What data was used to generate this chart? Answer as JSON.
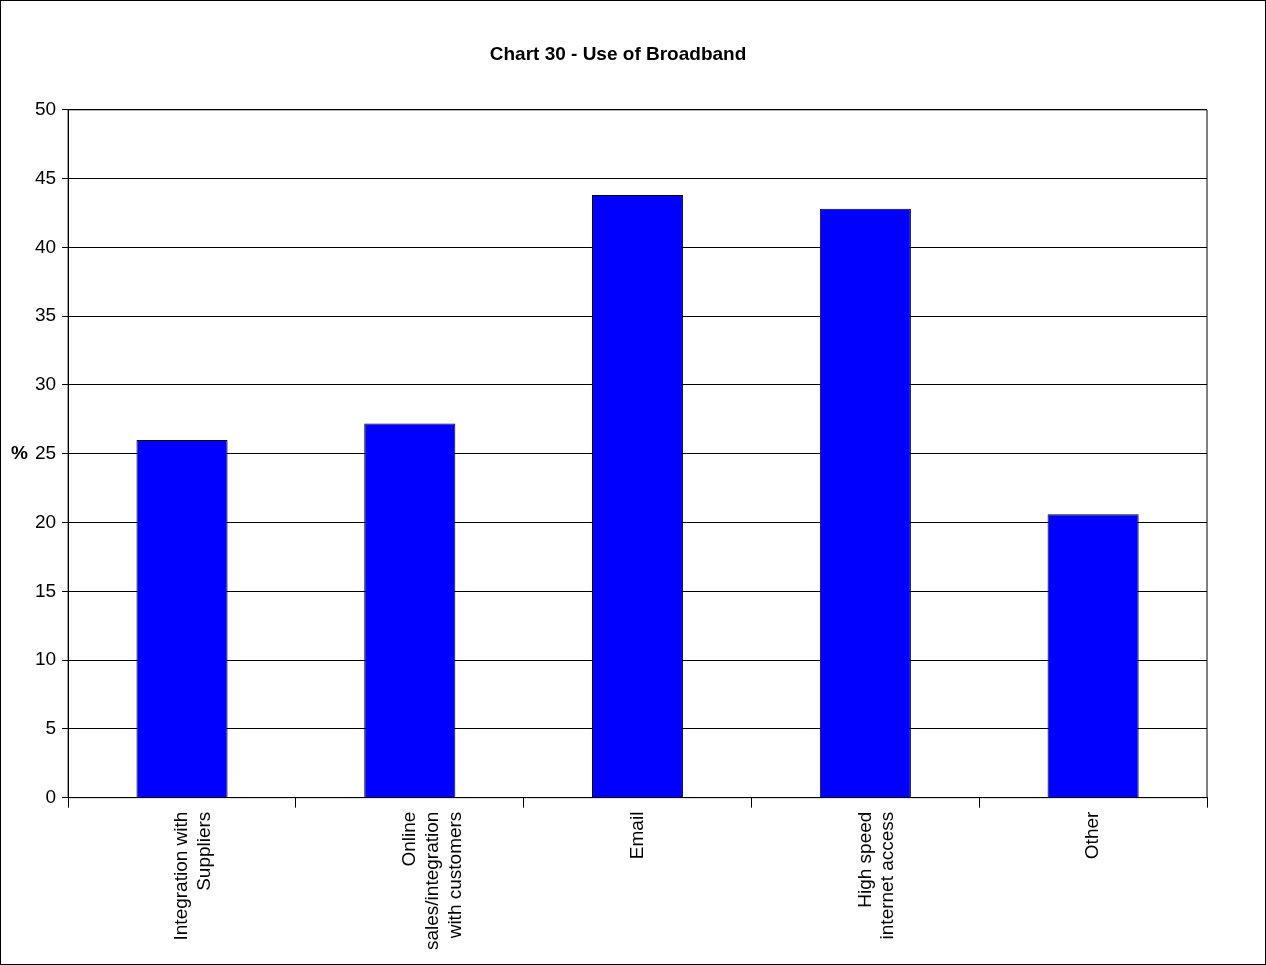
{
  "chart_data": {
    "type": "bar",
    "title": "Chart 30 - Use of Broadband",
    "ylabel": "%",
    "categories": [
      "Integration with Suppliers",
      "Online sales/integration with customers",
      "Email",
      "High speed internet access",
      "Other"
    ],
    "values": [
      26,
      27.2,
      43.8,
      42.8,
      20.6
    ],
    "color": "#0000ff",
    "ylim": [
      0,
      50
    ],
    "yticks": [
      0,
      5,
      10,
      15,
      20,
      25,
      30,
      35,
      40,
      45,
      50
    ],
    "grid": "y",
    "legend": false
  }
}
